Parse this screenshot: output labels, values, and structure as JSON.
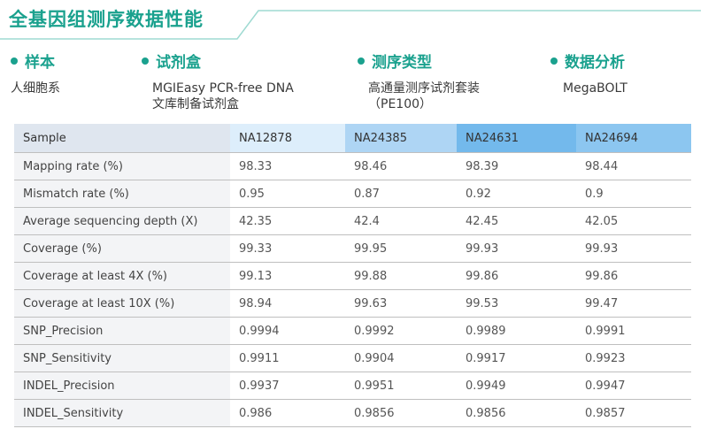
{
  "page": {
    "title": "全基因组测序数据性能",
    "accent": "#1aa18e"
  },
  "sections": [
    {
      "heading": "样本",
      "text": "人细胞系"
    },
    {
      "heading": "试剂盒",
      "text": "MGIEasy PCR-free DNA\n文库制备试剂盒"
    },
    {
      "heading": "测序类型",
      "text": "高通量测序试剂套装\n（PE100）"
    },
    {
      "heading": "数据分析",
      "text": "MegaBOLT"
    }
  ],
  "table": {
    "headers": [
      "Sample",
      "NA12878",
      "NA24385",
      "NA24631",
      "NA24694"
    ],
    "rows": [
      {
        "label": "Mapping rate (%)",
        "values": [
          "98.33",
          "98.46",
          "98.39",
          "98.44"
        ]
      },
      {
        "label": "Mismatch rate (%)",
        "values": [
          "0.95",
          "0.87",
          "0.92",
          "0.9"
        ]
      },
      {
        "label": "Average sequencing depth (X)",
        "values": [
          "42.35",
          "42.4",
          "42.45",
          "42.05"
        ]
      },
      {
        "label": "Coverage (%)",
        "values": [
          "99.33",
          "99.95",
          "99.93",
          "99.93"
        ]
      },
      {
        "label": "Coverage at least 4X (%)",
        "values": [
          "99.13",
          "99.88",
          "99.86",
          "99.86"
        ]
      },
      {
        "label": "Coverage at least 10X (%)",
        "values": [
          "98.94",
          "99.63",
          "99.53",
          "99.47"
        ]
      },
      {
        "label": "SNP_Precision",
        "values": [
          "0.9994",
          "0.9992",
          "0.9989",
          "0.9991"
        ]
      },
      {
        "label": "SNP_Sensitivity",
        "values": [
          "0.9911",
          "0.9904",
          "0.9917",
          "0.9923"
        ]
      },
      {
        "label": "INDEL_Precision",
        "values": [
          "0.9937",
          "0.9951",
          "0.9949",
          "0.9947"
        ]
      },
      {
        "label": "INDEL_Sensitivity",
        "values": [
          "0.986",
          "0.9856",
          "0.9856",
          "0.9857"
        ]
      }
    ]
  }
}
